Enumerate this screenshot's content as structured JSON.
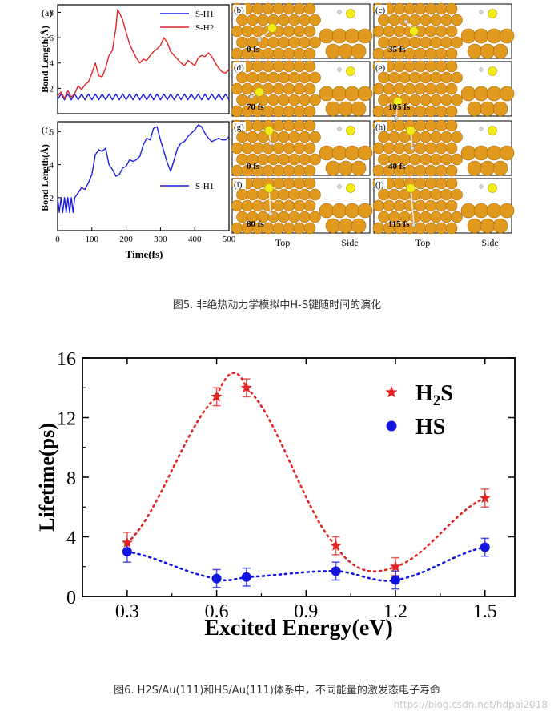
{
  "fig5": {
    "caption": "图5. 非绝热动力学模拟中H-S键随时间的演化",
    "panel_letters": {
      "a": "(a)",
      "f": "(f)"
    },
    "snapshots": [
      {
        "letter": "(b)",
        "time": "0 fs"
      },
      {
        "letter": "(c)",
        "time": "35 fs"
      },
      {
        "letter": "(d)",
        "time": "70 fs"
      },
      {
        "letter": "(e)",
        "time": "105 fs"
      },
      {
        "letter": "(g)",
        "time": "0 fs"
      },
      {
        "letter": "(h)",
        "time": "40 fs"
      },
      {
        "letter": "(i)",
        "time": "80 fs"
      },
      {
        "letter": "(j)",
        "time": "115 fs"
      }
    ],
    "view_labels": {
      "top": "Top",
      "side": "Side"
    },
    "colors": {
      "gold": "#e29a1e",
      "sulfur": "#f2ec1a",
      "hydrogen": "#d8d8d8"
    }
  },
  "fig6": {
    "caption": "图6. H2S/Au(111)和HS/Au(111)体系中，不同能量的激发态电子寿命"
  },
  "watermark": "https://blog.csdn.net/hdpai2018",
  "chart_data": [
    {
      "id": "fig5a",
      "type": "line",
      "title": "",
      "xlabel": "",
      "ylabel": "Bond Length(Å)",
      "xlim": [
        0,
        500
      ],
      "ylim": [
        0,
        8.6
      ],
      "yticks": [
        2,
        4,
        6,
        8
      ],
      "xticks": [],
      "legend": "top-right",
      "series": [
        {
          "name": "S-H1",
          "color": "#1f1fdb",
          "x": [
            0,
            10,
            20,
            30,
            40,
            50,
            60,
            70,
            80,
            90,
            100,
            110,
            120,
            130,
            140,
            150,
            160,
            170,
            180,
            190,
            200,
            210,
            220,
            230,
            240,
            250,
            260,
            270,
            280,
            290,
            300,
            310,
            320,
            330,
            340,
            350,
            360,
            370,
            380,
            390,
            400,
            410,
            420,
            430,
            440,
            450,
            460,
            470,
            480,
            490,
            500
          ],
          "y": [
            1.1,
            1.55,
            1.1,
            1.55,
            1.1,
            1.55,
            1.1,
            1.55,
            1.1,
            1.55,
            1.1,
            1.55,
            1.1,
            1.55,
            1.1,
            1.55,
            1.1,
            1.55,
            1.1,
            1.55,
            1.1,
            1.55,
            1.1,
            1.55,
            1.1,
            1.55,
            1.1,
            1.55,
            1.1,
            1.55,
            1.1,
            1.55,
            1.1,
            1.55,
            1.1,
            1.55,
            1.1,
            1.55,
            1.1,
            1.55,
            1.1,
            1.55,
            1.1,
            1.55,
            1.1,
            1.55,
            1.1,
            1.55,
            1.1,
            1.55,
            1.1
          ]
        },
        {
          "name": "S-H2",
          "color": "#e02424",
          "x": [
            0,
            10,
            20,
            30,
            40,
            50,
            60,
            70,
            80,
            90,
            100,
            110,
            120,
            130,
            140,
            150,
            160,
            170,
            175,
            180,
            190,
            200,
            210,
            220,
            230,
            240,
            250,
            260,
            270,
            280,
            290,
            300,
            310,
            320,
            330,
            340,
            350,
            360,
            370,
            380,
            390,
            400,
            410,
            420,
            430,
            440,
            450,
            460,
            470,
            480,
            490,
            500
          ],
          "y": [
            1.4,
            1.7,
            1.2,
            1.8,
            1.3,
            1.6,
            2.2,
            1.9,
            2.3,
            2.5,
            3.2,
            4.0,
            3.0,
            2.9,
            3.6,
            4.6,
            5.0,
            6.8,
            8.2,
            8.0,
            7.4,
            6.4,
            5.5,
            4.9,
            4.4,
            4.0,
            4.3,
            4.2,
            4.6,
            4.9,
            5.1,
            5.4,
            6.0,
            5.6,
            4.9,
            4.6,
            4.3,
            4.0,
            3.8,
            4.2,
            4.0,
            3.8,
            4.4,
            4.6,
            4.5,
            4.8,
            4.5,
            4.0,
            3.6,
            3.3,
            3.2,
            3.5
          ]
        }
      ]
    },
    {
      "id": "fig5f",
      "type": "line",
      "title": "",
      "xlabel": "Time(fs)",
      "ylabel": "Bond Length(Å)",
      "xlim": [
        0,
        500
      ],
      "ylim": [
        0,
        6.6
      ],
      "yticks": [
        2,
        4,
        6
      ],
      "xticks": [
        0,
        100,
        200,
        300,
        400,
        500
      ],
      "legend": "right",
      "series": [
        {
          "name": "S-H1",
          "color": "#1f1fdb",
          "x": [
            0,
            5,
            10,
            15,
            20,
            25,
            30,
            35,
            40,
            45,
            50,
            60,
            70,
            80,
            90,
            100,
            110,
            120,
            130,
            140,
            150,
            160,
            170,
            180,
            190,
            200,
            210,
            220,
            230,
            240,
            250,
            260,
            270,
            280,
            290,
            300,
            310,
            320,
            330,
            340,
            350,
            360,
            370,
            380,
            390,
            400,
            410,
            420,
            430,
            440,
            450,
            460,
            470,
            480,
            490,
            500
          ],
          "y": [
            2.0,
            1.1,
            2.0,
            1.1,
            2.0,
            1.1,
            2.0,
            1.1,
            2.0,
            1.1,
            2.0,
            2.3,
            2.6,
            2.5,
            2.9,
            3.4,
            4.6,
            4.9,
            4.8,
            5.0,
            4.0,
            3.7,
            3.3,
            3.4,
            3.8,
            3.9,
            4.3,
            4.2,
            4.3,
            4.5,
            5.2,
            5.6,
            5.5,
            6.2,
            6.3,
            5.5,
            4.8,
            4.1,
            3.6,
            4.3,
            5.0,
            5.3,
            5.4,
            5.7,
            5.9,
            6.1,
            6.4,
            6.3,
            5.9,
            5.6,
            5.4,
            5.5,
            5.6,
            5.5,
            5.5,
            5.7
          ]
        }
      ]
    },
    {
      "id": "fig6",
      "type": "scatter",
      "title": "",
      "xlabel": "Excited Energy(eV)",
      "ylabel": "Lifetime(ps)",
      "xlim": [
        0.15,
        1.6
      ],
      "ylim": [
        0,
        16
      ],
      "xticks": [
        0.3,
        0.6,
        0.9,
        1.2,
        1.5
      ],
      "yticks": [
        0,
        4,
        8,
        12,
        16
      ],
      "legend": "top-right",
      "series": [
        {
          "name": "H2S",
          "color": "#e32424",
          "marker": "star",
          "x": [
            0.3,
            0.6,
            0.7,
            1.0,
            1.2,
            1.5
          ],
          "y": [
            3.6,
            13.4,
            14.0,
            3.4,
            2.0,
            6.6
          ],
          "err": [
            0.7,
            0.6,
            0.6,
            0.6,
            0.6,
            0.6
          ]
        },
        {
          "name": "HS",
          "color": "#1414e0",
          "marker": "circle",
          "x": [
            0.3,
            0.6,
            0.7,
            1.0,
            1.2,
            1.5
          ],
          "y": [
            3.0,
            1.2,
            1.3,
            1.7,
            1.1,
            3.3
          ],
          "err": [
            0.7,
            0.6,
            0.6,
            0.6,
            0.6,
            0.6
          ]
        }
      ],
      "fit_lines": [
        {
          "name": "H2S fit",
          "color": "#e32424",
          "style": "dotted"
        },
        {
          "name": "HS fit",
          "color": "#1414e0",
          "style": "dotted"
        }
      ]
    }
  ]
}
